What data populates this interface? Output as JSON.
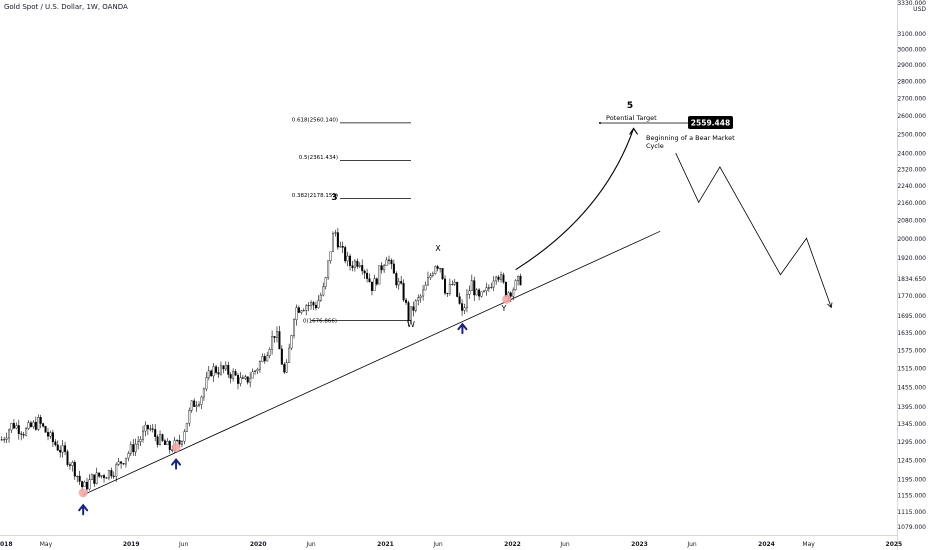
{
  "header": {
    "title": "Gold Spot / U.S. Dollar, 1W, OANDA"
  },
  "chart_data": {
    "type": "candlestick",
    "currency": "USD",
    "y_scale": "log",
    "ylim": [
      1060,
      3330
    ],
    "xlim": [
      "2017-12-20",
      "2025-01-10"
    ],
    "y_ticks": [
      3100,
      3000,
      2900,
      2800,
      2700,
      2600,
      2500,
      2400,
      2320,
      2240,
      2160,
      2080,
      2000,
      1920,
      1770,
      1695,
      1635,
      1575,
      1515,
      1455,
      1395,
      1345,
      1295,
      1245,
      1195,
      1155,
      1115,
      1079
    ],
    "y_tick_labels": [
      "3100.000",
      "3000.000",
      "2900.000",
      "2800.000",
      "2700.000",
      "2600.000",
      "2500.000",
      "2400.000",
      "2320.000",
      "2240.000",
      "2160.000",
      "2080.000",
      "2000.000",
      "1920.000",
      "1770.000",
      "1695.000",
      "1635.000",
      "1575.000",
      "1515.000",
      "1455.000",
      "1395.000",
      "1345.000",
      "1295.000",
      "1245.000",
      "1195.000",
      "1155.000",
      "1115.000",
      "1079.000"
    ],
    "top_tick": {
      "value": 3330,
      "label": "3330.000"
    },
    "last_price": {
      "value": 1834.65,
      "label": "1834.650"
    },
    "x_ticks": [
      {
        "date": "2018-01-01",
        "label": "2018"
      },
      {
        "date": "2018-05-01",
        "label": "May"
      },
      {
        "date": "2019-01-01",
        "label": "2019"
      },
      {
        "date": "2019-06-01",
        "label": "Jun"
      },
      {
        "date": "2020-01-01",
        "label": "2020"
      },
      {
        "date": "2020-06-01",
        "label": "Jun"
      },
      {
        "date": "2021-01-01",
        "label": "2021"
      },
      {
        "date": "2021-06-01",
        "label": "Jun"
      },
      {
        "date": "2022-01-01",
        "label": "2022"
      },
      {
        "date": "2022-06-01",
        "label": "Jun"
      },
      {
        "date": "2023-01-01",
        "label": "2023"
      },
      {
        "date": "2023-06-01",
        "label": "Jun"
      },
      {
        "date": "2024-01-01",
        "label": "2024"
      },
      {
        "date": "2024-05-01",
        "label": "May"
      },
      {
        "date": "2025-01-01",
        "label": "2025"
      }
    ],
    "price_path": [
      [
        "2017-12-25",
        1300
      ],
      [
        "2018-01-25",
        1345
      ],
      [
        "2018-03-01",
        1322
      ],
      [
        "2018-04-10",
        1350
      ],
      [
        "2018-05-20",
        1295
      ],
      [
        "2018-06-20",
        1265
      ],
      [
        "2018-07-20",
        1225
      ],
      [
        "2018-08-16",
        1170
      ],
      [
        "2018-09-10",
        1195
      ],
      [
        "2018-10-10",
        1205
      ],
      [
        "2018-11-15",
        1220
      ],
      [
        "2018-12-20",
        1260
      ],
      [
        "2019-01-25",
        1300
      ],
      [
        "2019-02-20",
        1335
      ],
      [
        "2019-03-15",
        1305
      ],
      [
        "2019-04-20",
        1275
      ],
      [
        "2019-05-20",
        1290
      ],
      [
        "2019-06-25",
        1400
      ],
      [
        "2019-07-20",
        1425
      ],
      [
        "2019-08-20",
        1510
      ],
      [
        "2019-09-20",
        1510
      ],
      [
        "2019-10-20",
        1495
      ],
      [
        "2019-11-20",
        1465
      ],
      [
        "2019-12-25",
        1510
      ],
      [
        "2020-01-20",
        1560
      ],
      [
        "2020-02-20",
        1640
      ],
      [
        "2020-03-19",
        1480
      ],
      [
        "2020-04-15",
        1720
      ],
      [
        "2020-05-15",
        1735
      ],
      [
        "2020-06-15",
        1735
      ],
      [
        "2020-07-10",
        1800
      ],
      [
        "2020-07-25",
        1940
      ],
      [
        "2020-08-07",
        2040
      ],
      [
        "2020-08-25",
        1950
      ],
      [
        "2020-09-20",
        1890
      ],
      [
        "2020-10-20",
        1910
      ],
      [
        "2020-11-25",
        1800
      ],
      [
        "2020-12-20",
        1880
      ],
      [
        "2021-01-05",
        1935
      ],
      [
        "2021-01-20",
        1860
      ],
      [
        "2021-02-20",
        1780
      ],
      [
        "2021-03-08",
        1690
      ],
      [
        "2021-03-25",
        1730
      ],
      [
        "2021-04-20",
        1780
      ],
      [
        "2021-05-25",
        1900
      ],
      [
        "2021-06-10",
        1880
      ],
      [
        "2021-06-25",
        1770
      ],
      [
        "2021-07-15",
        1820
      ],
      [
        "2021-08-09",
        1700
      ],
      [
        "2021-09-05",
        1820
      ],
      [
        "2021-09-25",
        1750
      ],
      [
        "2021-10-20",
        1785
      ],
      [
        "2021-11-16",
        1870
      ],
      [
        "2021-12-15",
        1780
      ],
      [
        "2022-01-05",
        1800
      ],
      [
        "2022-01-25",
        1834
      ]
    ],
    "annotations": {
      "wave_3": "3",
      "wave_5": "5",
      "label_x": "X",
      "label_w": "W",
      "label_y": "Y",
      "fib_levels": [
        {
          "label": "0.618(2560.140)",
          "value": 2560.14
        },
        {
          "label": "0.5(2361.434)",
          "value": 2361.434
        },
        {
          "label": "0.382(2178.151)",
          "value": 2178.151
        }
      ],
      "fib_base": {
        "label": "0(1676.866)",
        "value": 1676.866
      },
      "potential_target_label": "Potential Target",
      "target_price": {
        "label": "2559.448",
        "value": 2559.448
      },
      "bear_market_text_1": "Beginning of a Bear Market",
      "bear_market_text_2": "Cycle",
      "bear_path": [
        [
          "2023-04-15",
          2400
        ],
        [
          "2023-06-20",
          2160
        ],
        [
          "2023-08-20",
          2330
        ],
        [
          "2024-02-10",
          1850
        ],
        [
          "2024-04-25",
          2000
        ],
        [
          "2024-07-05",
          1725
        ]
      ],
      "bullish_path": [
        [
          "2022-01-10",
          1870
        ],
        [
          "2022-06-01",
          2000
        ],
        [
          "2022-10-10",
          2200
        ],
        [
          "2022-12-15",
          2530
        ]
      ],
      "trendline": [
        [
          "2018-08-16",
          1155
        ],
        [
          "2023-03-01",
          2030
        ]
      ],
      "support_circles": [
        [
          "2018-08-16",
          1160
        ],
        [
          "2019-05-10",
          1278
        ],
        [
          "2021-12-15",
          1755
        ]
      ],
      "support_arrows": [
        [
          "2018-08-16",
          1120
        ],
        [
          "2019-05-10",
          1235
        ],
        [
          "2021-08-10",
          1650
        ]
      ]
    }
  }
}
